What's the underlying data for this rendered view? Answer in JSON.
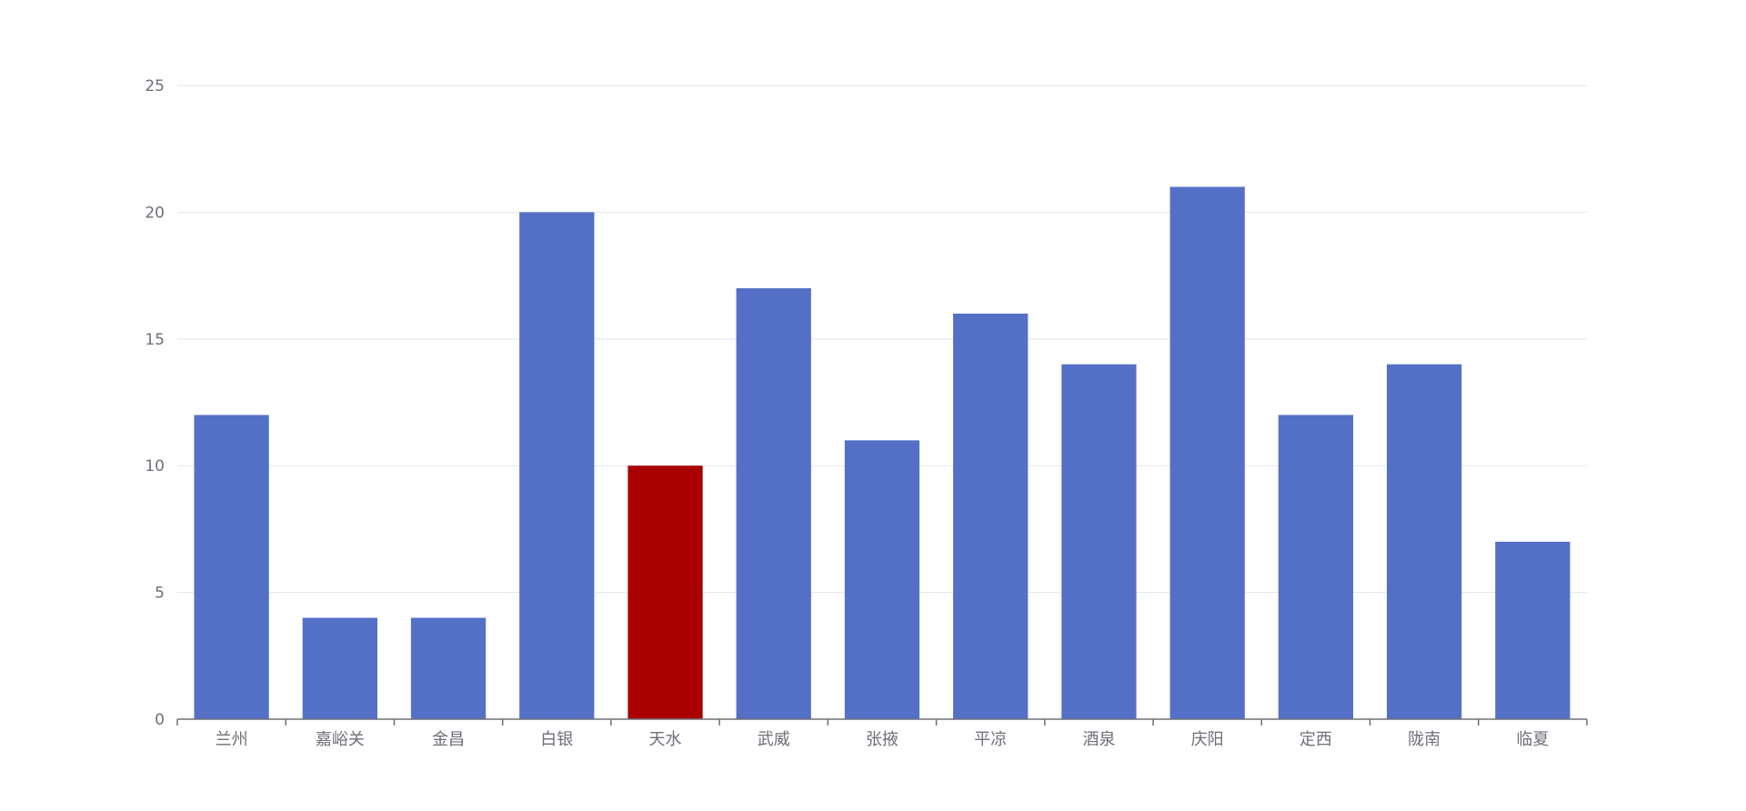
{
  "chart_data": {
    "type": "bar",
    "title": "",
    "xlabel": "",
    "ylabel": "",
    "categories": [
      "兰州",
      "嘉峪关",
      "金昌",
      "白银",
      "天水",
      "武威",
      "张掖",
      "平凉",
      "酒泉",
      "庆阳",
      "定西",
      "陇南",
      "临夏"
    ],
    "values": [
      12,
      4,
      4,
      20,
      10,
      17,
      11,
      16,
      14,
      21,
      12,
      14,
      7
    ],
    "highlight_category": "天水",
    "ylim": [
      0,
      25
    ],
    "yticks": [
      0,
      5,
      10,
      15,
      20,
      25
    ],
    "grid": true,
    "legend": "none",
    "colors": {
      "bar": "#5470c6",
      "highlight": "#a90000",
      "grid": "#e0e6f1",
      "axis": "#6e7079",
      "tick_label": "#6e7079"
    }
  }
}
